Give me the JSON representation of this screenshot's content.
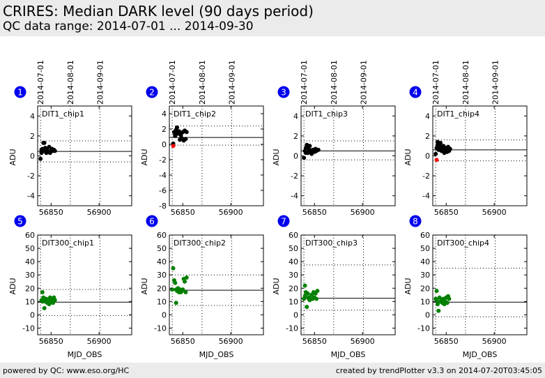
{
  "header": {
    "title": "CRIRES: Median DARK level (90 days period)",
    "subtitle": "QC data range: 2014-07-01 ... 2014-09-30"
  },
  "footer": {
    "left": "powered by QC: www.eso.org/HC",
    "right": "created by trendPlotter v3.3 on 2014-07-20T03:45:05"
  },
  "date_markers": {
    "labels": [
      "2014-07-01",
      "2014-08-01",
      "2014-09-01"
    ],
    "mjd": [
      56839,
      56870,
      56901
    ]
  },
  "colors": {
    "dit1_points": "#000000",
    "dit300_points": "#008000",
    "outlier": "#ff0000",
    "badge": "#0000ee"
  },
  "chart_data": [
    {
      "type": "scatter",
      "panel": "1",
      "title": "DIT1_chip1",
      "xlabel": "",
      "ylabel": "ADU",
      "xlim": [
        56836,
        56934
      ],
      "ylim": [
        -5,
        5
      ],
      "xticks": [
        56850,
        56900
      ],
      "yticks": [
        -4,
        -2,
        0,
        2,
        4
      ],
      "median": 0.45,
      "limits": [
        -0.6,
        1.5
      ],
      "point_color": "#000000",
      "x": [
        56839,
        56840,
        56841,
        56842,
        56843,
        56844,
        56845,
        56846,
        56847,
        56848,
        56849,
        56850,
        56851,
        56852,
        56853,
        56854,
        56840,
        56843,
        56846
      ],
      "y": [
        -0.3,
        0.3,
        0.7,
        1.3,
        0.5,
        0.8,
        0.3,
        0.6,
        0.4,
        0.9,
        0.3,
        0.5,
        0.7,
        0.5,
        0.6,
        0.5,
        0.6,
        1.3,
        0.4
      ],
      "outliers_x": [],
      "outliers_y": []
    },
    {
      "type": "scatter",
      "panel": "2",
      "title": "DIT1_chip2",
      "xlabel": "",
      "ylabel": "ADU",
      "xlim": [
        56836,
        56934
      ],
      "ylim": [
        -8,
        5
      ],
      "xticks": [
        56850,
        56900
      ],
      "yticks": [
        -8,
        -6,
        -4,
        -2,
        0,
        2,
        4
      ],
      "median": 0.9,
      "limits": [
        -0.1,
        2.4
      ],
      "point_color": "#000000",
      "x": [
        56840,
        56841,
        56842,
        56843,
        56844,
        56845,
        56846,
        56847,
        56848,
        56849,
        56850,
        56851,
        56852,
        56853,
        56854,
        56842,
        56845,
        56848
      ],
      "y": [
        0.1,
        1.6,
        1.3,
        1.9,
        2.2,
        1.5,
        1.7,
        0.6,
        1.4,
        0.8,
        1.6,
        0.5,
        1.8,
        0.7,
        1.6,
        1.1,
        1.4,
        1.2
      ],
      "outliers_x": [
        56840
      ],
      "outliers_y": [
        -0.2
      ]
    },
    {
      "type": "scatter",
      "panel": "3",
      "title": "DIT1_chip3",
      "xlabel": "",
      "ylabel": "ADU",
      "xlim": [
        56836,
        56934
      ],
      "ylim": [
        -5,
        5
      ],
      "xticks": [
        56850,
        56900
      ],
      "yticks": [
        -4,
        -2,
        0,
        2,
        4
      ],
      "median": 0.5,
      "limits": [
        -0.4,
        1.5
      ],
      "point_color": "#000000",
      "x": [
        56839,
        56840,
        56841,
        56842,
        56843,
        56844,
        56845,
        56846,
        56847,
        56848,
        56849,
        56850,
        56851,
        56852,
        56853,
        56854,
        56841,
        56844
      ],
      "y": [
        -0.2,
        0.5,
        0.8,
        1.1,
        0.3,
        0.7,
        1.0,
        0.4,
        0.2,
        0.6,
        0.5,
        0.4,
        0.7,
        0.5,
        0.6,
        0.6,
        0.3,
        1.0
      ],
      "outliers_x": [],
      "outliers_y": []
    },
    {
      "type": "scatter",
      "panel": "4",
      "title": "DIT1_chip4",
      "xlabel": "",
      "ylabel": "ADU",
      "xlim": [
        56836,
        56934
      ],
      "ylim": [
        -5,
        5
      ],
      "xticks": [
        56850,
        56900
      ],
      "yticks": [
        -4,
        -2,
        0,
        2,
        4
      ],
      "median": 0.6,
      "limits": [
        -0.5,
        1.6
      ],
      "point_color": "#000000",
      "x": [
        56839,
        56840,
        56841,
        56842,
        56843,
        56844,
        56845,
        56846,
        56847,
        56848,
        56849,
        56850,
        56851,
        56852,
        56853,
        56854,
        56841,
        56844
      ],
      "y": [
        0.2,
        0.8,
        1.4,
        0.6,
        1.2,
        0.9,
        0.5,
        0.7,
        1.0,
        0.3,
        0.6,
        0.8,
        0.4,
        0.9,
        0.5,
        0.7,
        1.1,
        1.3
      ],
      "outliers_x": [
        56840
      ],
      "outliers_y": [
        -0.4
      ]
    },
    {
      "type": "scatter",
      "panel": "5",
      "title": "DIT300_chip1",
      "xlabel": "MJD_OBS",
      "ylabel": "ADU",
      "xlim": [
        56836,
        56934
      ],
      "ylim": [
        -15,
        60
      ],
      "xticks": [
        56850,
        56900
      ],
      "yticks": [
        -10,
        0,
        10,
        20,
        30,
        40,
        50,
        60
      ],
      "median": 9.5,
      "limits": [
        -0.5,
        19.0
      ],
      "point_color": "#008000",
      "x": [
        56840,
        56841,
        56842,
        56843,
        56844,
        56845,
        56846,
        56847,
        56848,
        56849,
        56850,
        56851,
        56852,
        56853,
        56854,
        56841,
        56844
      ],
      "y": [
        11,
        17,
        13,
        5,
        10,
        12,
        9,
        11,
        8,
        13,
        10,
        12,
        9,
        13,
        11,
        10,
        12
      ],
      "outliers_x": [],
      "outliers_y": []
    },
    {
      "type": "scatter",
      "panel": "6",
      "title": "DIT300_chip2",
      "xlabel": "MJD_OBS",
      "ylabel": "ADU",
      "xlim": [
        56836,
        56934
      ],
      "ylim": [
        -15,
        60
      ],
      "xticks": [
        56850,
        56900
      ],
      "yticks": [
        -10,
        0,
        10,
        20,
        30,
        40,
        50,
        60
      ],
      "median": 18.5,
      "limits": [
        7.0,
        30.0
      ],
      "point_color": "#008000",
      "x": [
        56839,
        56840,
        56841,
        56842,
        56843,
        56844,
        56845,
        56846,
        56847,
        56848,
        56849,
        56850,
        56851,
        56852,
        56853,
        56854,
        56843,
        56846
      ],
      "y": [
        19,
        35,
        26,
        24,
        9,
        18,
        20,
        17,
        19,
        17,
        18,
        19,
        27,
        25,
        17,
        28,
        19,
        18
      ],
      "outliers_x": [],
      "outliers_y": []
    },
    {
      "type": "scatter",
      "panel": "7",
      "title": "DIT300_chip3",
      "xlabel": "MJD_OBS",
      "ylabel": "ADU",
      "xlim": [
        56836,
        56934
      ],
      "ylim": [
        -15,
        60
      ],
      "xticks": [
        56850,
        56900
      ],
      "yticks": [
        -10,
        0,
        10,
        20,
        30,
        40,
        50,
        60
      ],
      "median": 12.5,
      "limits": [
        3.5,
        37.5
      ],
      "point_color": "#008000",
      "x": [
        56839,
        56840,
        56841,
        56842,
        56843,
        56844,
        56845,
        56846,
        56847,
        56848,
        56849,
        56850,
        56851,
        56852,
        56853,
        56840,
        56844
      ],
      "y": [
        12,
        22,
        17,
        6,
        16,
        13,
        11,
        12,
        15,
        12,
        17,
        13,
        16,
        12,
        18,
        14,
        12
      ],
      "outliers_x": [],
      "outliers_y": []
    },
    {
      "type": "scatter",
      "panel": "8",
      "title": "DIT300_chip4",
      "xlabel": "MJD_OBS",
      "ylabel": "ADU",
      "xlim": [
        56836,
        56934
      ],
      "ylim": [
        -15,
        60
      ],
      "xticks": [
        56850,
        56900
      ],
      "yticks": [
        -10,
        0,
        10,
        20,
        30,
        40,
        50,
        60
      ],
      "median": 9.5,
      "limits": [
        -1.5,
        35.0
      ],
      "point_color": "#008000",
      "x": [
        56839,
        56840,
        56841,
        56842,
        56843,
        56844,
        56845,
        56846,
        56847,
        56848,
        56849,
        56850,
        56851,
        56852,
        56853,
        56840,
        56845
      ],
      "y": [
        12,
        18,
        8,
        3,
        13,
        10,
        11,
        9,
        12,
        8,
        10,
        13,
        9,
        14,
        12,
        11,
        10
      ],
      "outliers_x": [],
      "outliers_y": []
    }
  ]
}
